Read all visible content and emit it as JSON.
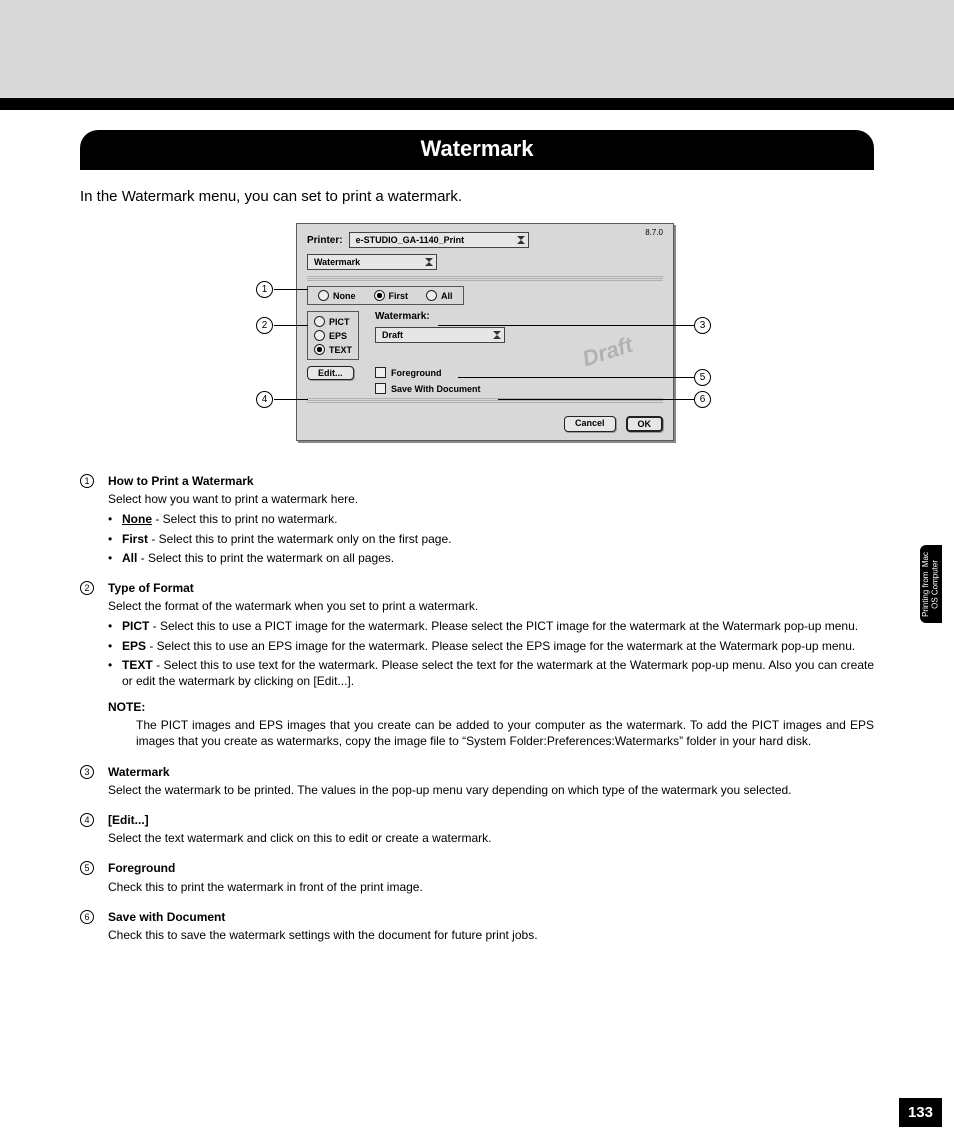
{
  "title": "Watermark",
  "intro": "In the Watermark menu, you can set to print a watermark.",
  "dialog": {
    "version": "8.7.0",
    "printer_label": "Printer:",
    "printer_value": "e-STUDIO_GA-1140_Print",
    "menu_value": "Watermark",
    "how": {
      "none": "None",
      "first": "First",
      "all": "All"
    },
    "format": {
      "pict": "PICT",
      "eps": "EPS",
      "text": "TEXT"
    },
    "watermark_label": "Watermark:",
    "watermark_value": "Draft",
    "foreground": "Foreground",
    "save_with_doc": "Save With Document",
    "edit_btn": "Edit...",
    "cancel": "Cancel",
    "ok": "OK",
    "draft_stamp": "Draft"
  },
  "callouts": {
    "c1": "1",
    "c2": "2",
    "c3": "3",
    "c4": "4",
    "c5": "5",
    "c6": "6"
  },
  "items": [
    {
      "num": "1",
      "title": "How to Print a Watermark",
      "body": "Select how you want to print a watermark here.",
      "bullets": [
        {
          "b": "None",
          "u": true,
          "t": " - Select this to print no watermark."
        },
        {
          "b": "First",
          "u": false,
          "t": " - Select this to print the watermark only on the first page."
        },
        {
          "b": "All",
          "u": false,
          "t": " - Select this to print the watermark on all pages."
        }
      ]
    },
    {
      "num": "2",
      "title": "Type of Format",
      "body": "Select the format of the watermark when you set to print a watermark.",
      "bullets": [
        {
          "b": "PICT",
          "t": " - Select this to use a PICT image for the watermark.  Please select the PICT image for the watermark at the Watermark pop-up menu."
        },
        {
          "b": "EPS",
          "t": " - Select this to use an EPS image for the watermark.  Please select the EPS image for the watermark at the Watermark pop-up menu."
        },
        {
          "b": "TEXT",
          "t": " - Select this to use text for the watermark.  Please select the text for the watermark at the Watermark pop-up menu. Also you can create or edit the watermark by clicking on [Edit...]."
        }
      ],
      "note_h": "NOTE:",
      "note": "The PICT images and EPS images that you create can be added to your computer as the watermark.  To add the PICT images and EPS images that you create as watermarks, copy the image file to “System Folder:Preferences:Watermarks” folder in your hard disk."
    },
    {
      "num": "3",
      "title": "Watermark",
      "body": "Select the watermark to be printed.  The values in the pop-up menu vary depending on which type of the watermark you selected."
    },
    {
      "num": "4",
      "title": "[Edit...]",
      "body": "Select the text watermark and click on this to edit or create a watermark."
    },
    {
      "num": "5",
      "title": "Foreground",
      "body": "Check this to print the watermark in front of the print image."
    },
    {
      "num": "6",
      "title": "Save with Document",
      "body": "Check this to save the watermark settings with the document for future print jobs."
    }
  ],
  "side_tab": "Printing from  Mac\nOS Computer",
  "page": "133"
}
